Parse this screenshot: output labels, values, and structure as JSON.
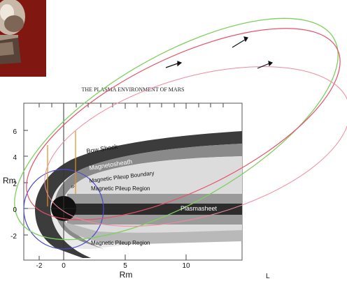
{
  "title": "THE PLASMA ENVIRONMENT OF MARS",
  "axis": {
    "y_label": "Rm",
    "x_label": "Rm",
    "y_ticks": [
      "6",
      "4",
      "2",
      "0",
      "-2"
    ],
    "x_ticks": [
      "-2",
      "0",
      "5",
      "10"
    ]
  },
  "regions": {
    "bow_shock": "Bow Shock",
    "magnetosheath": "Magnetosheath",
    "pileup_boundary": "Magnetic Pileup Boundary",
    "pileup_region_upper": "Magnetic Pileup Region",
    "plasmasheet": "Plasmasheet",
    "pileup_region_lower": "Magnetic Pileup Region",
    "small_label": "IP"
  },
  "stray_mark": "L",
  "colors": {
    "orbit_green": "#7fcf5f",
    "orbit_red": "#e8506a",
    "orbit_pink": "#f08aa0",
    "circle_blue": "#4a4ad0",
    "marker_orange": "#e09020",
    "photo_bg": "#8a1a12"
  }
}
